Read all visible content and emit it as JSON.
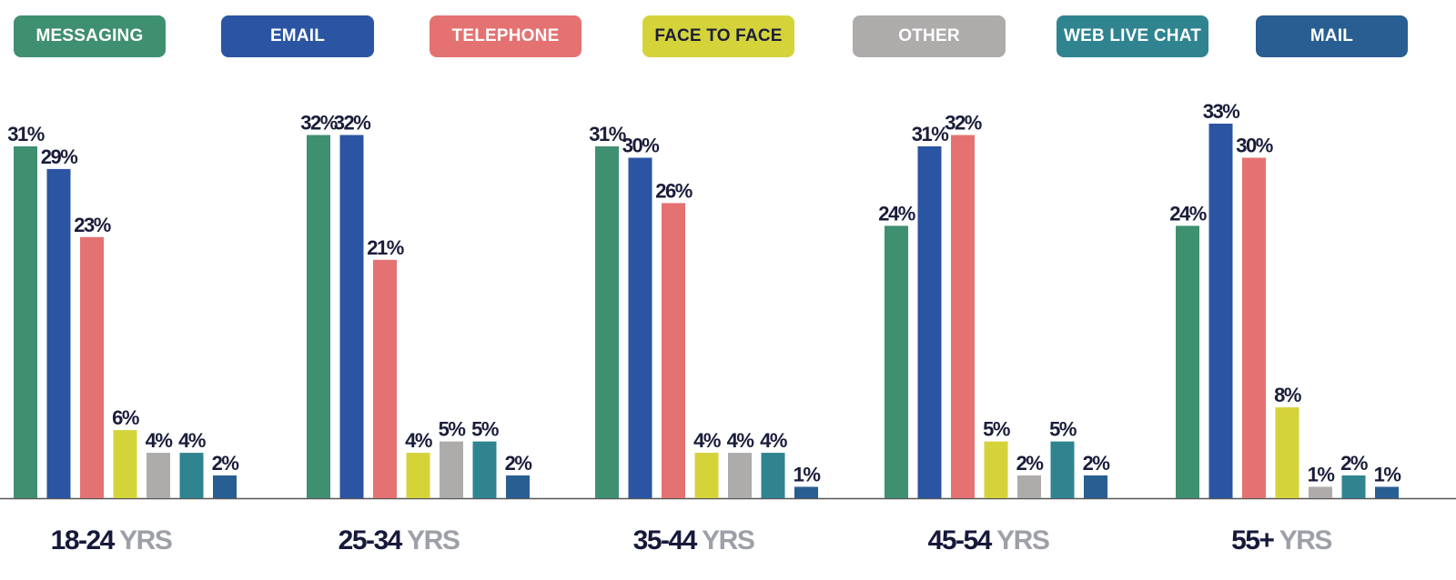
{
  "chart_data": {
    "type": "bar",
    "title": "",
    "xlabel": "",
    "ylabel": "",
    "ylim": [
      0,
      33
    ],
    "grid": false,
    "legend_placement": "top",
    "value_suffix": "%",
    "groups": [
      {
        "name": "18-24",
        "unit": "YRS"
      },
      {
        "name": "25-34",
        "unit": "YRS"
      },
      {
        "name": "35-44",
        "unit": "YRS"
      },
      {
        "name": "45-54",
        "unit": "YRS"
      },
      {
        "name": "55+",
        "unit": "YRS"
      }
    ],
    "series": [
      {
        "name": "MESSAGING",
        "color": "#3f8f71",
        "text_color": "#ffffff",
        "values": [
          31,
          32,
          31,
          24,
          24
        ]
      },
      {
        "name": "EMAIL",
        "color": "#2b55a3",
        "text_color": "#ffffff",
        "values": [
          29,
          32,
          30,
          31,
          33
        ]
      },
      {
        "name": "TELEPHONE",
        "color": "#e57272",
        "text_color": "#ffffff",
        "values": [
          23,
          21,
          26,
          32,
          30
        ]
      },
      {
        "name": "FACE TO FACE",
        "color": "#d5d33a",
        "text_color": "#1a1d3a",
        "values": [
          6,
          4,
          4,
          5,
          8
        ]
      },
      {
        "name": "OTHER",
        "color": "#aeabab",
        "text_color": "#ffffff",
        "values": [
          4,
          5,
          4,
          2,
          1
        ]
      },
      {
        "name": "WEB LIVE CHAT",
        "color": "#2f8490",
        "text_color": "#ffffff",
        "values": [
          4,
          5,
          4,
          5,
          2
        ]
      },
      {
        "name": "MAIL",
        "color": "#285e92",
        "text_color": "#ffffff",
        "values": [
          2,
          2,
          1,
          2,
          1
        ]
      }
    ]
  }
}
